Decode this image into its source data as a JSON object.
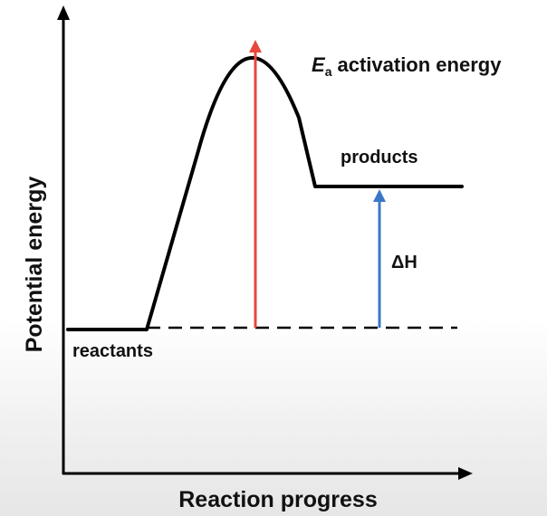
{
  "diagram": {
    "y_axis_label": "Potential energy",
    "x_axis_label": "Reaction progress",
    "reactants_label": "reactants",
    "products_label": "products",
    "activation_label": {
      "symbol": "E",
      "subscript": "a",
      "text": "activation energy"
    },
    "enthalpy_label": "ΔH",
    "colors": {
      "curve": "#000000",
      "activation_arrow": "#e8473c",
      "enthalpy_arrow": "#3a77c8",
      "axes": "#000000"
    }
  }
}
